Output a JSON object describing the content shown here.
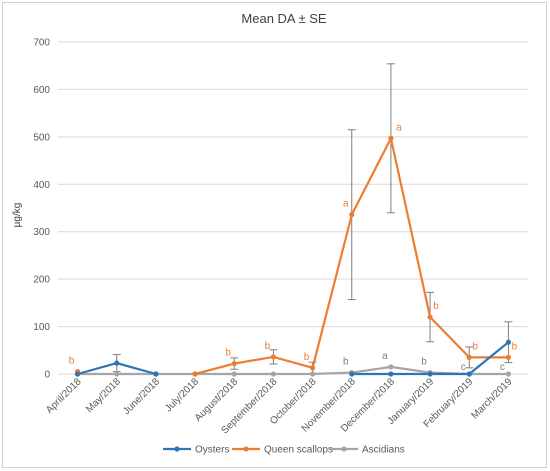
{
  "chart_data": {
    "type": "line",
    "title": "Mean DA ± SE",
    "ylabel": "µg/kg",
    "xlabel": "",
    "ylim": [
      0,
      700
    ],
    "yticks": [
      "0",
      "100",
      "200",
      "300",
      "400",
      "500",
      "600",
      "700"
    ],
    "categories": [
      "April/2018",
      "May/2018",
      "June/2018",
      "July/2018",
      "August/2018",
      "September/2018",
      "October/2018",
      "November/2018",
      "December/2018",
      "January/2019",
      "February/2019",
      "March/2019"
    ],
    "grid": "horizontal",
    "legend_position": "bottom",
    "series": [
      {
        "name": "Oysters",
        "color": "#2e75b6",
        "values": [
          0,
          23,
          0,
          null,
          null,
          null,
          null,
          0,
          0,
          0,
          0,
          67
        ],
        "errors": [
          0,
          18,
          0,
          null,
          null,
          null,
          null,
          0,
          0,
          0,
          0,
          43
        ],
        "letters": [
          "",
          "",
          "",
          "",
          "",
          "",
          "",
          "",
          "",
          "",
          "",
          ""
        ]
      },
      {
        "name": "Queen scallops",
        "color": "#ed7d31",
        "values": [
          5,
          null,
          null,
          0,
          22,
          36,
          13,
          336,
          497,
          120,
          35,
          35
        ],
        "errors": [
          0,
          null,
          null,
          0,
          12,
          15,
          12,
          179,
          157,
          52,
          22,
          0
        ],
        "letters": [
          "b",
          "",
          "",
          "",
          "b",
          "b",
          "b",
          "a",
          "a",
          "b",
          "b",
          "b"
        ]
      },
      {
        "name": "Ascidians",
        "color": "#a5a5a5",
        "values": [
          0,
          0,
          0,
          0,
          0,
          0,
          0,
          3,
          15,
          3,
          0,
          0
        ],
        "errors": [
          0,
          0,
          0,
          0,
          0,
          0,
          0,
          0,
          0,
          0,
          0,
          0
        ],
        "letters": [
          "",
          "",
          "",
          "",
          "",
          "",
          "",
          "b",
          "a",
          "b",
          "c",
          "c"
        ]
      }
    ]
  }
}
